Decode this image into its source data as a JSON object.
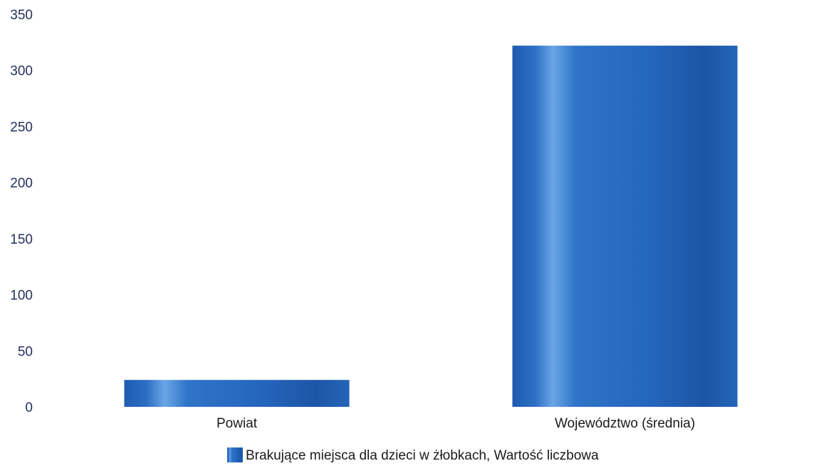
{
  "chart_data": {
    "type": "bar",
    "title": "",
    "xlabel": "",
    "ylabel": "",
    "categories": [
      "Powiat",
      "Województwo (średnia)"
    ],
    "series": [
      {
        "name": "Brakujące miejsca dla dzieci w żłobkach, Wartość liczbowa",
        "values": [
          24,
          322
        ]
      }
    ],
    "ylim": [
      0,
      350
    ],
    "yticks": [
      0,
      50,
      100,
      150,
      200,
      250,
      300,
      350
    ],
    "grid": false,
    "legend": "bottom-center",
    "colors": {
      "bar_dark": "#1d56a8",
      "bar_mid": "#2f74c8",
      "bar_light": "#6aa6e6"
    }
  }
}
